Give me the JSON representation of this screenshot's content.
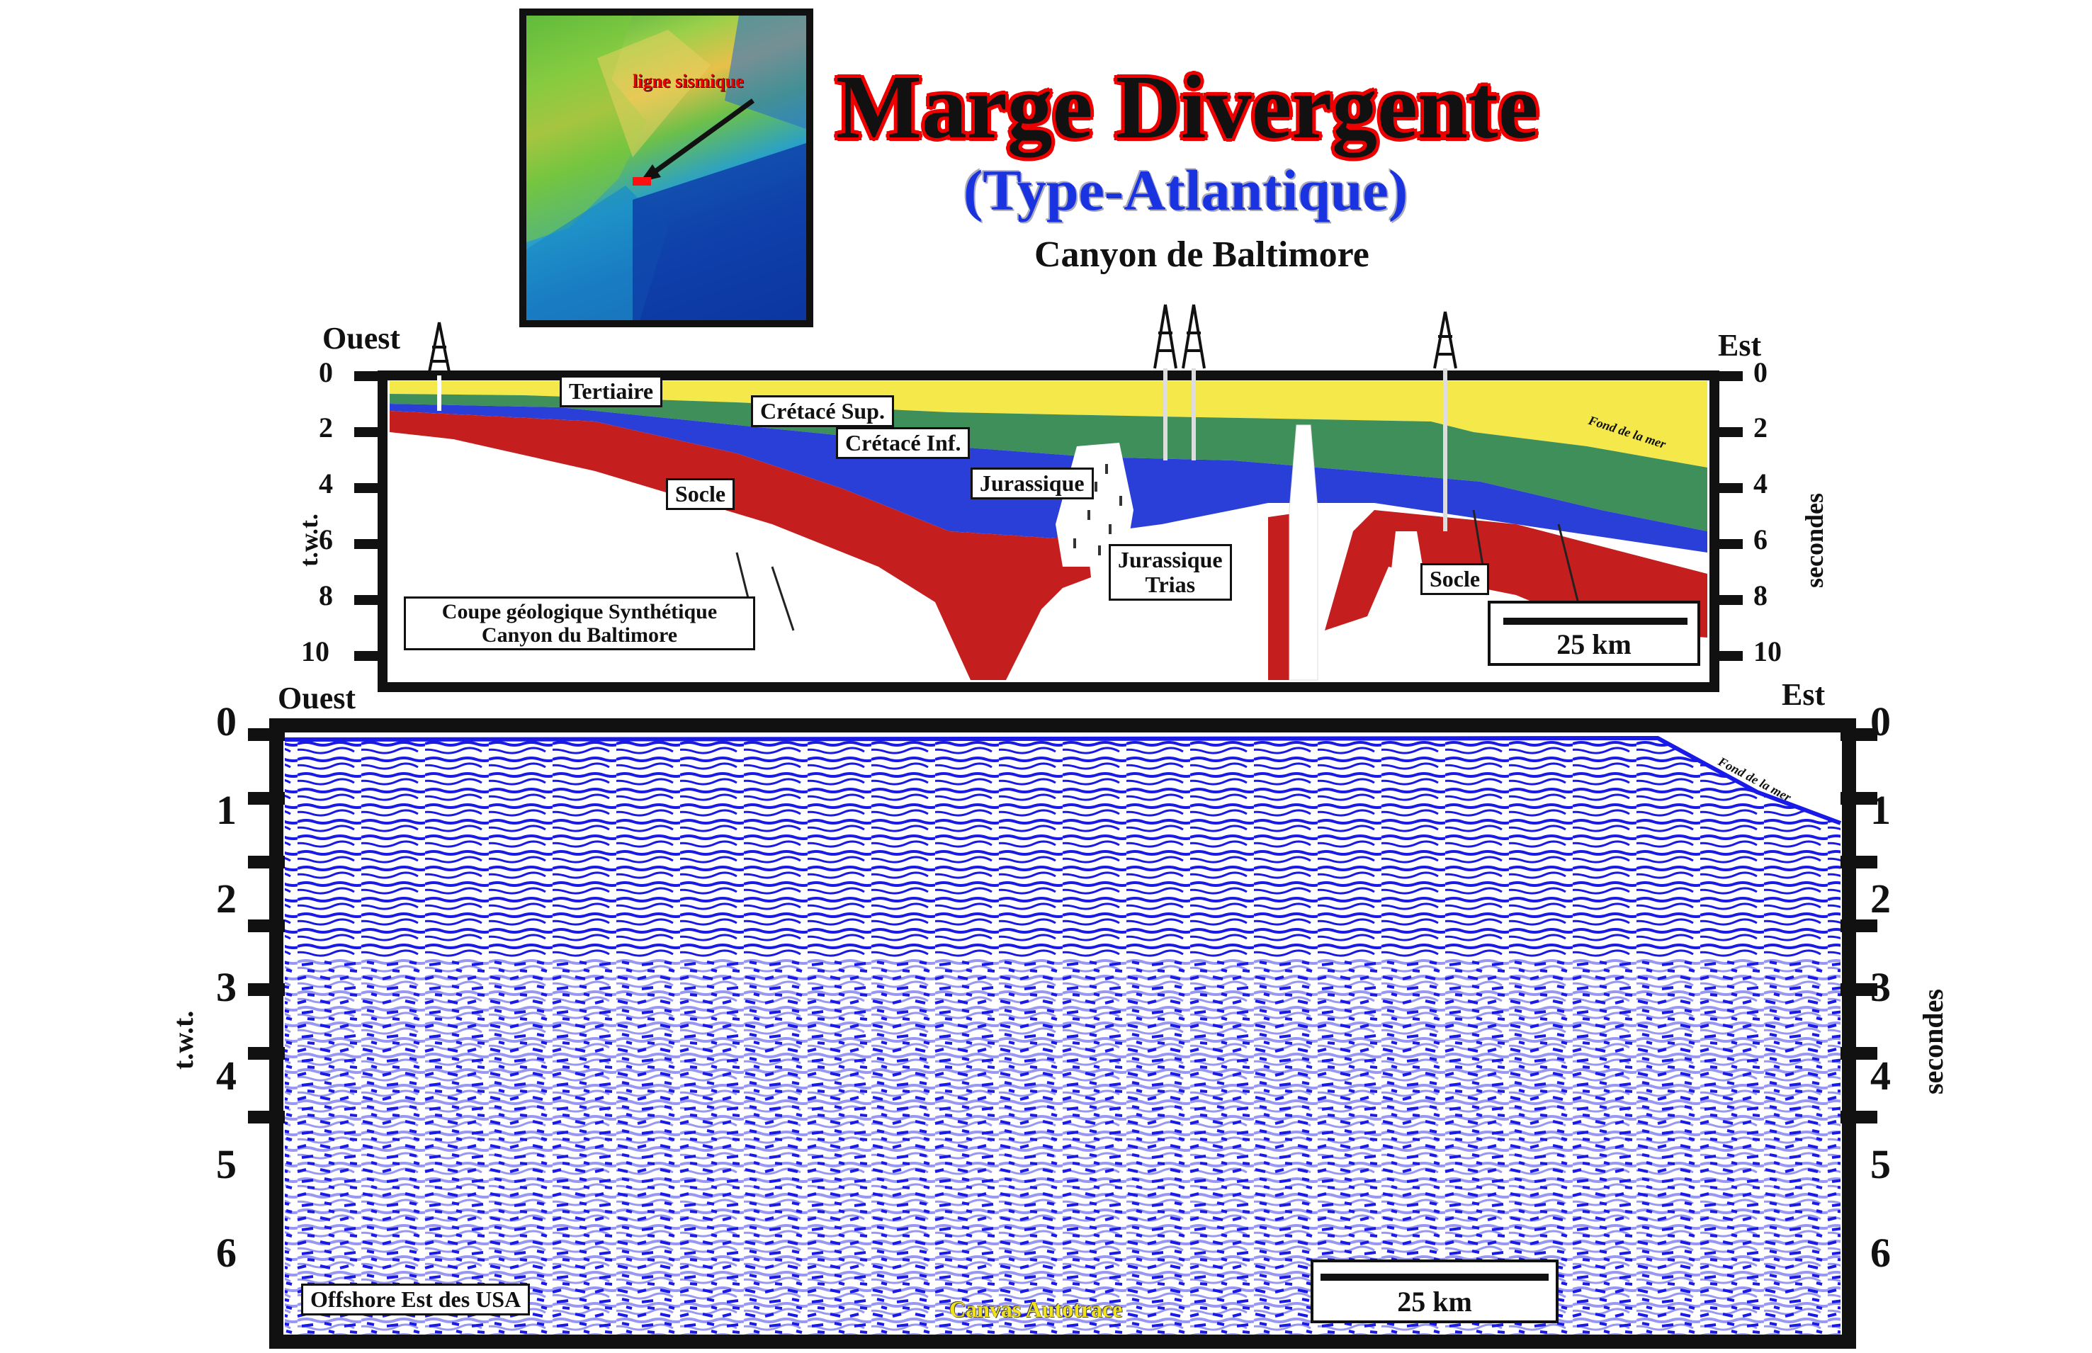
{
  "header": {
    "title": "Marge Divergente",
    "subtitle": "(Type-Atlantique)",
    "location": "Canyon de Baltimore",
    "map_label": "ligne sismique"
  },
  "top_section": {
    "west_label": "Ouest",
    "east_label": "Est",
    "y_ticks": [
      "0",
      "2",
      "4",
      "6",
      "8",
      "10"
    ],
    "ylabel_left": "t.w.t.",
    "ylabel_right": "secondes",
    "units": {
      "tertiaire": "Tertiaire",
      "cretace_sup": "Crétacé Sup.",
      "cretace_inf": "Crétacé Inf.",
      "jurassique": "Jurassique",
      "socle_left": "Socle",
      "jurassique_trias_1": "Jurassique",
      "jurassique_trias_2": "Trias",
      "socle_right": "Socle",
      "fond_de_la_mer": "Fond de la mer"
    },
    "caption_line1": "Coupe géologique Synthétique",
    "caption_line2": "Canyon du Baltimore",
    "scale_label": "25 km",
    "colors": {
      "tertiaire": "#f4e84a",
      "cretace": "#3f8f5a",
      "jurassique": "#2a3fd8",
      "socle": "#c41e1e"
    }
  },
  "bottom_section": {
    "west_label": "Ouest",
    "east_label": "Est",
    "y_ticks": [
      "0",
      "1",
      "2",
      "3",
      "4",
      "5",
      "6"
    ],
    "ylabel_left": "t.w.t.",
    "ylabel_right": "secondes",
    "fond_de_la_mer": "Fond de la mer",
    "location_label": "Offshore Est des USA",
    "credit": "Canvas Autotrace",
    "scale_label": "25 km",
    "trace_color": "#1a1ae6"
  }
}
